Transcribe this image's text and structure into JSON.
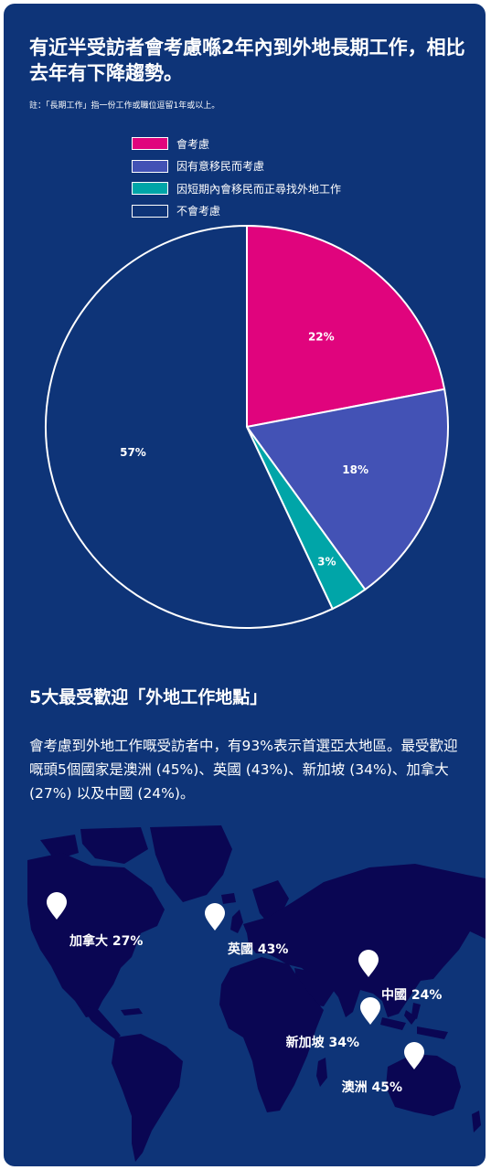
{
  "section1": {
    "title": "有近半受訪者會考慮喺2年內到外地長期工作，相比去年有下降趨勢。",
    "note": "註：「長期工作」指一份工作或職位逗留1年或以上。"
  },
  "chart_data": {
    "type": "pie",
    "title": "有近半受訪者會考慮喺2年內到外地長期工作，相比去年有下降趨勢。",
    "legend_position": "top",
    "slices": [
      {
        "label": "會考慮",
        "value": 22,
        "value_label": "22%",
        "color": "#e0047d"
      },
      {
        "label": "因有意移民而考慮",
        "value": 18,
        "value_label": "18%",
        "color": "#4352b5"
      },
      {
        "label": "因短期內會移民而正尋找外地工作",
        "value": 3,
        "value_label": "3%",
        "color": "#00a5a8"
      },
      {
        "label": "不會考慮",
        "value": 57,
        "value_label": "57%",
        "color": "#0e3478"
      }
    ]
  },
  "section2": {
    "title": "5大最受歡迎「外地工作地點」",
    "paragraph": "會考慮到外地工作嘅受訪者中，有93%表示首選亞太地區。最受歡迎嘅頭5個國家是澳洲 (45%)、英國 (43%)、新加坡 (34%)、加拿大 (27%) 以及中國 (24%)。"
  },
  "map": {
    "pin_icon": "map-pin-icon",
    "land_color": "#0a0653",
    "pins": [
      {
        "label": "加拿大 27%"
      },
      {
        "label": "英國 43%"
      },
      {
        "label": "中國 24%"
      },
      {
        "label": "新加坡 34%"
      },
      {
        "label": "澳洲 45%"
      }
    ]
  },
  "colors": {
    "background": "#0e3478",
    "text": "#ffffff"
  }
}
